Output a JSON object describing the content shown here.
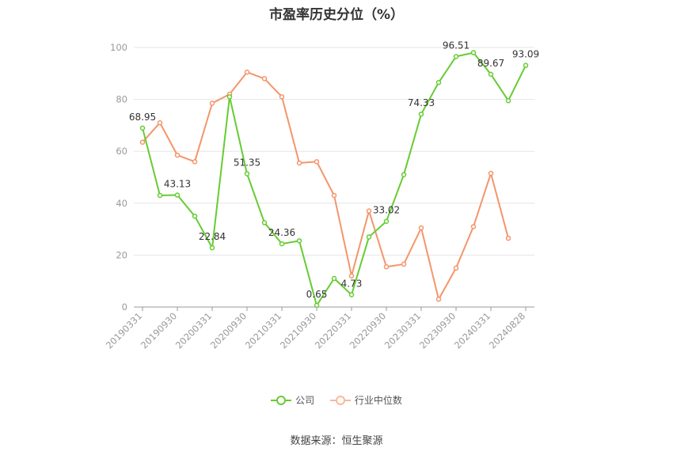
{
  "chart_data": {
    "type": "line",
    "title": "市盈率历史分位（%）",
    "ylim": [
      0,
      100
    ],
    "yticks": [
      0,
      20,
      40,
      60,
      80,
      100
    ],
    "x": [
      "20190331",
      "20190630",
      "20190930",
      "20191231",
      "20200331",
      "20200630",
      "20200930",
      "20201231",
      "20210331",
      "20210630",
      "20210930",
      "20211231",
      "20220331",
      "20220630",
      "20220930",
      "20221231",
      "20230331",
      "20230630",
      "20230930",
      "20231231",
      "20240331",
      "20240630",
      "20240828"
    ],
    "xtick_labels": [
      "20190331",
      "20190930",
      "20200331",
      "20200930",
      "20210331",
      "20210930",
      "20220331",
      "20220930",
      "20230331",
      "20230930",
      "20240331",
      "20240828"
    ],
    "series": [
      {
        "name": "公司",
        "color": "#66cc33",
        "values": [
          68.95,
          43.0,
          43.13,
          35.0,
          22.84,
          81.0,
          51.35,
          32.5,
          24.36,
          25.5,
          0.65,
          11.0,
          4.73,
          27.0,
          33.02,
          51.0,
          74.33,
          86.5,
          96.51,
          98.0,
          89.67,
          79.5,
          93.09
        ],
        "labels": {
          "0": "68.95",
          "2": "43.13",
          "4": "22.84",
          "6": "51.35",
          "8": "24.36",
          "10": "0.65",
          "12": "4.73",
          "14": "33.02",
          "16": "74.33",
          "18": "96.51",
          "20": "89.67",
          "22": "93.09"
        }
      },
      {
        "name": "行业中位数",
        "color": "#f4956a",
        "values": [
          63.5,
          71.0,
          58.5,
          56.0,
          78.5,
          82.0,
          90.5,
          88.0,
          81.0,
          55.5,
          56.0,
          43.0,
          12.0,
          37.0,
          15.5,
          16.5,
          30.5,
          3.0,
          15.0,
          31.0,
          51.5,
          26.5,
          null
        ]
      }
    ]
  },
  "legend": {
    "company": "公司",
    "industry": "行业中位数"
  },
  "source": "数据来源：恒生聚源"
}
